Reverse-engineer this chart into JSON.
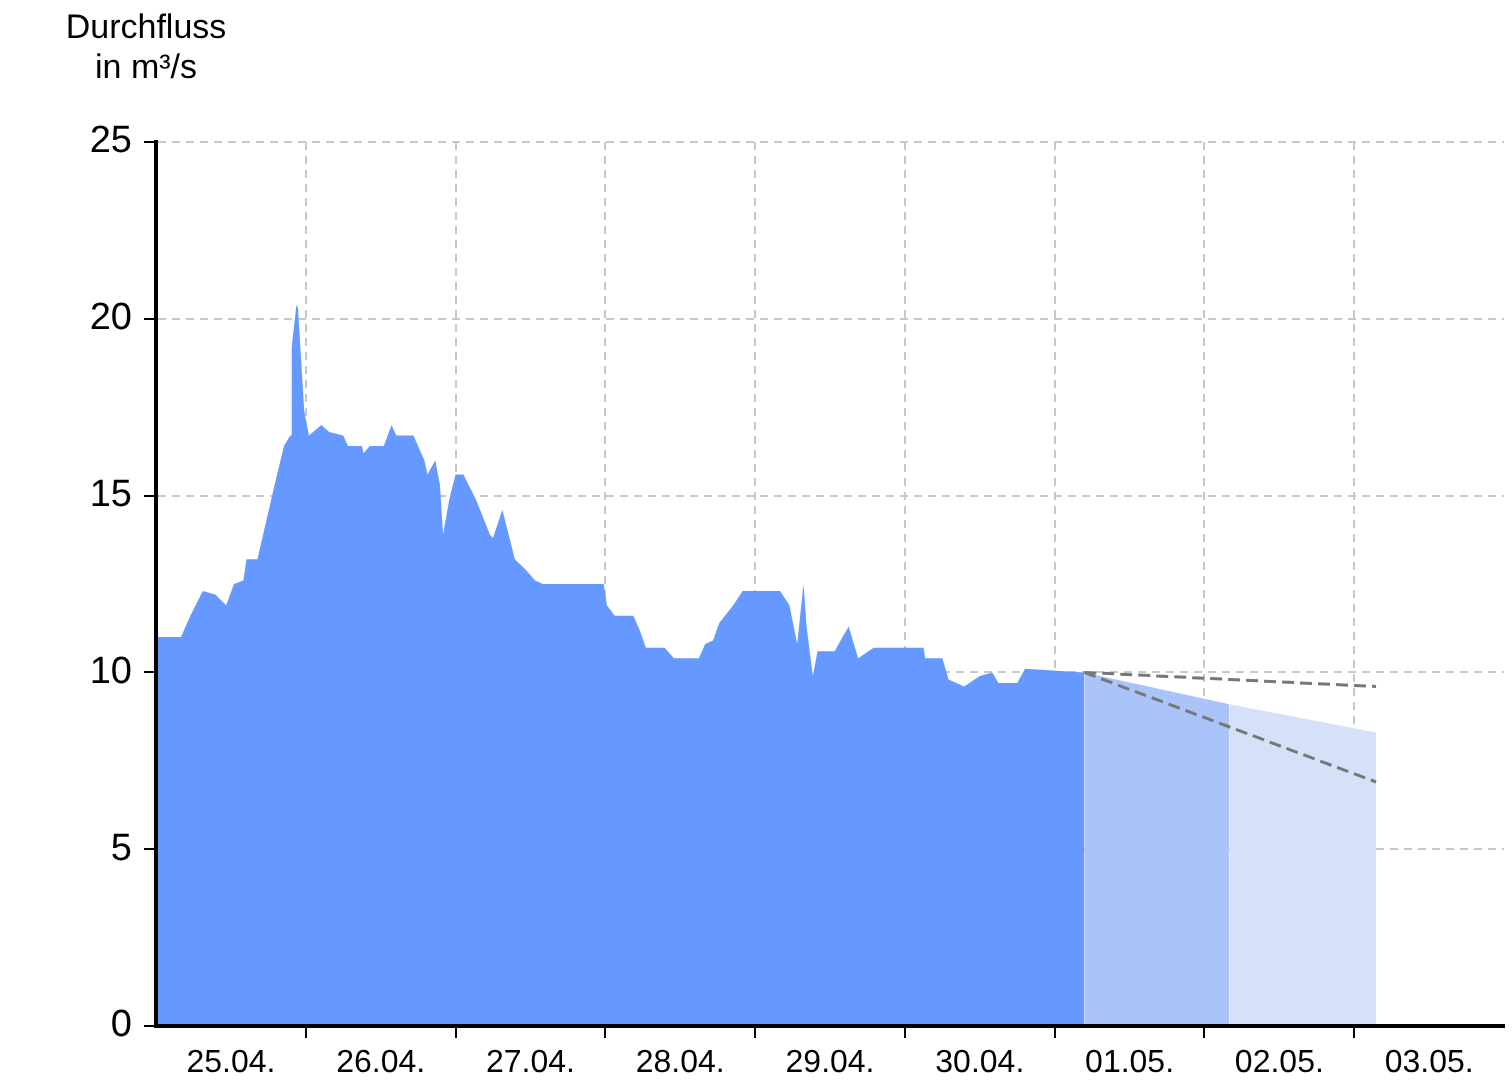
{
  "chart_data": {
    "type": "area",
    "ylabel": "Durchfluss in m³/s",
    "xlim": [
      "--04-25",
      "--05-04"
    ],
    "xticks": [
      {
        "value": "--04-25T12:00",
        "label": "25.04."
      },
      {
        "value": "--04-26T12:00",
        "label": "26.04."
      },
      {
        "value": "--04-27T12:00",
        "label": "27.04."
      },
      {
        "value": "--04-28T12:00",
        "label": "28.04."
      },
      {
        "value": "--04-29T12:00",
        "label": "29.04."
      },
      {
        "value": "--04-30T12:00",
        "label": "30.04."
      },
      {
        "value": "--05-01T12:00",
        "label": "01.05."
      },
      {
        "value": "--05-02T12:00",
        "label": "02.05."
      },
      {
        "value": "--05-03T12:00",
        "label": "03.05."
      },
      {
        "value": "--04-26",
        "label": null
      },
      {
        "value": "--04-27",
        "label": null
      },
      {
        "value": "--04-28",
        "label": null
      },
      {
        "value": "--04-29",
        "label": null
      },
      {
        "value": "--04-30",
        "label": null
      },
      {
        "value": "--05-01",
        "label": null
      },
      {
        "value": "--05-02",
        "label": null
      },
      {
        "value": "--05-03",
        "label": null
      }
    ],
    "ylim": [
      0,
      25
    ],
    "yticks": [
      0,
      5,
      10,
      15,
      20,
      25
    ],
    "grid": true,
    "series": [
      {
        "type": "area",
        "color": "#6699ff",
        "x": [
          "--04-25T00:00",
          "--04-25T04:00",
          "--04-25T05:30",
          "--04-25T07:30",
          "--04-25T09:30",
          "--04-25T11:15",
          "--04-25T12:30",
          "--04-25T14:00",
          "--04-25T14:30",
          "--04-25T16:15",
          "--04-25T19:00",
          "--04-25T20:30",
          "--04-25T21:30",
          "--04-25T21:45",
          "--04-25T22:30",
          "--04-25T22:45",
          "--04-25T23:45",
          "--04-26T00:30",
          "--04-26T02:30",
          "--04-26T03:45",
          "--04-26T06:00",
          "--04-26T06:45",
          "--04-26T09:00",
          "--04-26T09:15",
          "--04-26T10:15",
          "--04-26T12:30",
          "--04-26T13:45",
          "--04-26T14:30",
          "--04-26T17:15",
          "--04-26T19:00",
          "--04-26T19:30",
          "--04-26T20:45",
          "--04-26T21:30",
          "--04-26T22:00",
          "--04-26T23:00",
          "--04-27T00:00",
          "--04-27T01:15",
          "--04-27T03:15",
          "--04-27T05:30",
          "--04-27T06:00",
          "--04-27T07:30",
          "--04-27T09:30",
          "--04-27T11:15",
          "--04-27T12:45",
          "--04-27T14:00",
          "--04-27T23:45",
          "--04-28T00:15",
          "--04-28T01:30",
          "--04-28T04:30",
          "--04-28T05:30",
          "--04-28T06:30",
          "--04-28T09:30",
          "--04-28T11:00",
          "--04-28T15:00",
          "--04-28T16:00",
          "--04-28T17:15",
          "--04-28T18:15",
          "--04-28T20:30",
          "--04-28T22:00",
          "--04-29T04:00",
          "--04-29T05:30",
          "--04-29T06:45",
          "--04-29T07:45",
          "--04-29T08:15",
          "--04-29T09:15",
          "--04-29T10:00",
          "--04-29T12:45",
          "--04-29T14:00",
          "--04-29T15:00",
          "--04-29T16:30",
          "--04-29T19:00",
          "--04-30T03:00",
          "--04-30T03:15",
          "--04-30T06:00",
          "--04-30T07:00",
          "--04-30T09:30",
          "--04-30T12:00",
          "--04-30T14:00",
          "--04-30T15:00",
          "--04-30T18:00",
          "--04-30T19:15",
          "--05-01T04:45"
        ],
        "values": [
          11.0,
          11.0,
          11.6,
          12.3,
          12.2,
          11.9,
          12.5,
          12.6,
          13.2,
          13.2,
          15.3,
          16.4,
          16.7,
          19.2,
          20.4,
          20.3,
          17.4,
          16.7,
          17.0,
          16.8,
          16.7,
          16.4,
          16.4,
          16.2,
          16.4,
          16.4,
          17.0,
          16.7,
          16.7,
          16.0,
          15.6,
          16.0,
          15.3,
          13.9,
          14.9,
          15.6,
          15.6,
          14.9,
          13.9,
          13.8,
          14.6,
          13.2,
          12.9,
          12.6,
          12.5,
          12.5,
          11.9,
          11.6,
          11.6,
          11.2,
          10.7,
          10.7,
          10.4,
          10.4,
          10.8,
          10.9,
          11.4,
          11.9,
          12.3,
          12.3,
          11.9,
          10.8,
          12.5,
          11.3,
          9.9,
          10.6,
          10.6,
          11.0,
          11.3,
          10.4,
          10.7,
          10.7,
          10.4,
          10.4,
          9.8,
          9.6,
          9.9,
          10.0,
          9.7,
          9.7,
          10.1,
          10.0
        ]
      },
      {
        "type": "area",
        "color": "#aac4fa",
        "x": [
          "--05-01T04:45",
          "--05-02T04:00"
        ],
        "values": [
          10.0,
          9.1
        ]
      },
      {
        "type": "area",
        "color": "#d5e1f8",
        "x": [
          "--05-02T04:00",
          "--05-03T03:30"
        ],
        "values": [
          9.1,
          8.3
        ]
      },
      {
        "type": "line",
        "color": "#777777",
        "line_style": "dashed",
        "x": [
          "--05-01T04:45",
          "--05-02T04:00",
          "--05-03T03:30"
        ],
        "values": [
          10.0,
          9.8,
          9.6
        ]
      },
      {
        "type": "line",
        "color": "#777777",
        "line_style": "dashed",
        "x": [
          "--05-01T04:45",
          "--05-03T03:30"
        ],
        "values": [
          10.0,
          6.9
        ]
      }
    ]
  }
}
